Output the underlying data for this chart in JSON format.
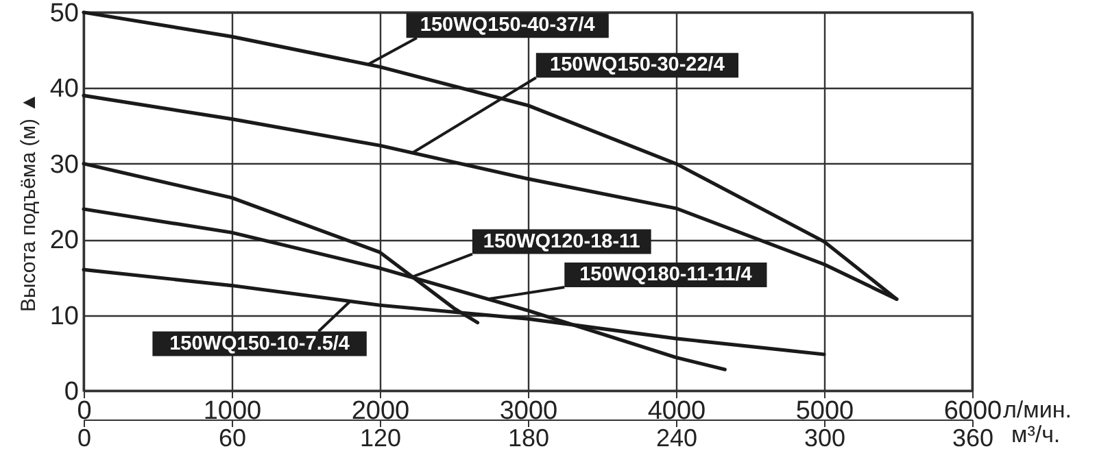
{
  "chart_data": {
    "type": "line",
    "xlabel": "л/мин.",
    "ylabel": "Высота подъёма (м) ▲",
    "x2label": "м³/ч.",
    "xlim": [
      0,
      6000
    ],
    "xticks": [
      0,
      1000,
      2000,
      3000,
      4000,
      5000,
      6000
    ],
    "x2lim": [
      0,
      360
    ],
    "x2ticks": [
      0,
      60,
      120,
      180,
      240,
      300,
      360
    ],
    "ylim": [
      0,
      50
    ],
    "yticks": [
      0,
      10,
      20,
      30,
      40,
      50
    ],
    "grid": true,
    "marker": "none",
    "line_style": "solid",
    "series": [
      {
        "name": "150WQ150-40-37/4",
        "color": "#1a1a1a",
        "x": [
          0,
          1000,
          2000,
          3000,
          4000,
          5000,
          5490
        ],
        "values": [
          50,
          46.8,
          42.8,
          37.7,
          30,
          19.7,
          12.1
        ]
      },
      {
        "name": "150WQ150-30-22/4",
        "color": "#1a1a1a",
        "x": [
          0,
          1000,
          2000,
          3000,
          4000,
          5000,
          5490
        ],
        "values": [
          39,
          35.9,
          32.4,
          28,
          24.1,
          16.7,
          12.1
        ]
      },
      {
        "name": "150WQ120-18-11",
        "color": "#1a1a1a",
        "x": [
          0,
          1000,
          2000,
          2500,
          2660
        ],
        "values": [
          30,
          25.5,
          18.3,
          10.9,
          9
        ]
      },
      {
        "name": "150WQ180-11-11/4",
        "color": "#1a1a1a",
        "x": [
          0,
          1000,
          2000,
          3000,
          4000,
          4330
        ],
        "values": [
          24,
          20.9,
          16.2,
          10.6,
          4.4,
          2.8
        ]
      },
      {
        "name": "150WQ150-10-7.5/4",
        "color": "#1a1a1a",
        "x": [
          0,
          1000,
          2000,
          3000,
          4000,
          5000
        ],
        "values": [
          16,
          13.9,
          11.3,
          9.5,
          6.9,
          4.8
        ]
      }
    ]
  }
}
